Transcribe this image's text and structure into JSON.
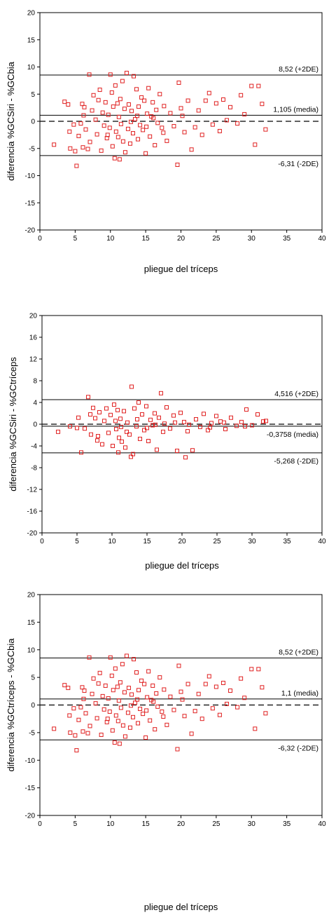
{
  "chart_data": [
    {
      "type": "scatter",
      "xlabel": "pliegue del tríceps",
      "ylabel": "diferencia %GCSiri - %GCbia",
      "xlim": [
        0,
        40
      ],
      "ylim": [
        -20,
        20
      ],
      "xticks": [
        "0",
        "5",
        "10",
        "15",
        "20",
        "25",
        "30",
        "35",
        "40"
      ],
      "yticks": [
        "20",
        "15",
        "10",
        "5",
        "0",
        "-5",
        "-10",
        "-15",
        "-20"
      ],
      "ytick_values": [
        20,
        15,
        10,
        5,
        0,
        -5,
        -10,
        -15,
        -20
      ],
      "lines": [
        {
          "y": 8.52,
          "style": "solid",
          "label": "8,52 (+2DE)",
          "label_pos": "above"
        },
        {
          "y": 1.105,
          "style": "solid",
          "label": "1,105 (media)",
          "label_pos": "above"
        },
        {
          "y": 0,
          "style": "dashed",
          "label": "",
          "label_pos": "none"
        },
        {
          "y": -6.31,
          "style": "solid",
          "label": "-6,31 (-2DE)",
          "label_pos": "below"
        }
      ],
      "points": [
        [
          2,
          -4.3
        ],
        [
          3.5,
          3.6
        ],
        [
          4,
          3.1
        ],
        [
          4.2,
          -1.9
        ],
        [
          4.8,
          -0.6
        ],
        [
          5,
          -5.5
        ],
        [
          5.2,
          -8.2
        ],
        [
          5.5,
          -2.7
        ],
        [
          5.8,
          -0.4
        ],
        [
          6,
          3.2
        ],
        [
          6.1,
          -4.8
        ],
        [
          6.3,
          2.6
        ],
        [
          6.5,
          -1.5
        ],
        [
          6.8,
          -5.1
        ],
        [
          7,
          8.6
        ],
        [
          7.1,
          -3.8
        ],
        [
          7.4,
          2.0
        ],
        [
          7.6,
          4.8
        ],
        [
          7.9,
          0.3
        ],
        [
          8.1,
          -2.4
        ],
        [
          8.3,
          3.9
        ],
        [
          8.5,
          5.8
        ],
        [
          8.7,
          -5.4
        ],
        [
          8.9,
          1.6
        ],
        [
          9.1,
          -0.8
        ],
        [
          9.3,
          3.5
        ],
        [
          9.5,
          -3.1
        ],
        [
          9.7,
          1.2
        ],
        [
          9.9,
          -1.2
        ],
        [
          10.0,
          8.6
        ],
        [
          10.2,
          5.3
        ],
        [
          10.3,
          -4.6
        ],
        [
          10.4,
          2.7
        ],
        [
          10.6,
          -6.8
        ],
        [
          10.7,
          6.6
        ],
        [
          10.8,
          -1.9
        ],
        [
          11,
          3.3
        ],
        [
          11.1,
          -2.9
        ],
        [
          11.2,
          0.8
        ],
        [
          11.4,
          4.1
        ],
        [
          11.5,
          -0.5
        ],
        [
          11.7,
          7.4
        ],
        [
          11.8,
          -3.7
        ],
        [
          12,
          2.3
        ],
        [
          12.1,
          -5.7
        ],
        [
          12.3,
          8.9
        ],
        [
          12.5,
          -1.4
        ],
        [
          12.6,
          3.1
        ],
        [
          12.8,
          -4.1
        ],
        [
          13,
          1.9
        ],
        [
          13.2,
          -2.2
        ],
        [
          13.3,
          8.3
        ],
        [
          13.5,
          0.4
        ],
        [
          13.7,
          5.9
        ],
        [
          13.9,
          -3.3
        ],
        [
          14,
          2.7
        ],
        [
          14.2,
          -0.7
        ],
        [
          14.4,
          4.4
        ],
        [
          14.6,
          -1.6
        ],
        [
          14.8,
          3.8
        ],
        [
          15,
          -5.9
        ],
        [
          15.2,
          1.4
        ],
        [
          15.4,
          6.1
        ],
        [
          15.6,
          -2.8
        ],
        [
          15.8,
          0.9
        ],
        [
          16,
          3.5
        ],
        [
          16.3,
          -4.4
        ],
        [
          16.5,
          2.1
        ],
        [
          16.7,
          -0.3
        ],
        [
          17,
          5.0
        ],
        [
          17.3,
          -1.2
        ],
        [
          17.6,
          2.8
        ],
        [
          18,
          -3.6
        ],
        [
          18.5,
          1.5
        ],
        [
          19,
          -0.9
        ],
        [
          19.5,
          -8.0
        ],
        [
          19.7,
          7.1
        ],
        [
          20,
          2.4
        ],
        [
          20.5,
          -2.0
        ],
        [
          21,
          3.8
        ],
        [
          21.5,
          -5.2
        ],
        [
          22,
          -1.1
        ],
        [
          22.5,
          2.0
        ],
        [
          23,
          -2.5
        ],
        [
          24,
          5.2
        ],
        [
          24.5,
          -0.6
        ],
        [
          25,
          3.3
        ],
        [
          25.5,
          -1.8
        ],
        [
          26,
          4.0
        ],
        [
          27,
          2.6
        ],
        [
          28,
          -0.4
        ],
        [
          28.5,
          4.8
        ],
        [
          29,
          1.3
        ],
        [
          30,
          6.5
        ],
        [
          30.5,
          -4.3
        ],
        [
          31,
          6.5
        ],
        [
          31.5,
          3.2
        ],
        [
          32,
          -1.5
        ],
        [
          4.3,
          -5.0
        ],
        [
          6.2,
          1.1
        ],
        [
          9.6,
          -2.5
        ],
        [
          11.3,
          -7.0
        ],
        [
          12.9,
          -0.1
        ],
        [
          13.8,
          1.0
        ],
        [
          15.1,
          -1.0
        ],
        [
          16.1,
          0.6
        ],
        [
          17.5,
          -2.1
        ],
        [
          20.2,
          1.0
        ],
        [
          23.5,
          3.8
        ],
        [
          26.5,
          0.2
        ]
      ]
    },
    {
      "type": "scatter",
      "xlabel": "pliegue del tríceps",
      "ylabel": "diferencia %GCSiri - %GCtríceps",
      "xlim": [
        0,
        40
      ],
      "ylim": [
        -20,
        20
      ],
      "xticks": [
        "0",
        "5",
        "10",
        "15",
        "20",
        "25",
        "30",
        "35",
        "40"
      ],
      "yticks": [
        "20",
        "16",
        "12",
        "8",
        "4",
        "0",
        "-4",
        "-8",
        "-12",
        "-16",
        "-20"
      ],
      "ytick_values": [
        20,
        16,
        12,
        8,
        4,
        0,
        -4,
        -8,
        -12,
        -16,
        -20
      ],
      "lines": [
        {
          "y": 4.516,
          "style": "solid",
          "label": "4,516 (+2DE)",
          "label_pos": "above"
        },
        {
          "y": 0,
          "style": "dashed",
          "label": "",
          "label_pos": "none"
        },
        {
          "y": -0.3758,
          "style": "solid",
          "label": "-0,3758 (media)",
          "label_pos": "below"
        },
        {
          "y": -5.268,
          "style": "solid",
          "label": "-5,268 (-2DE)",
          "label_pos": "below"
        }
      ],
      "points": [
        [
          2.3,
          -1.4
        ],
        [
          4,
          -0.4
        ],
        [
          5.2,
          1.2
        ],
        [
          5.6,
          -5.2
        ],
        [
          6.1,
          -0.8
        ],
        [
          6.6,
          5.0
        ],
        [
          7,
          -1.9
        ],
        [
          7.3,
          3.0
        ],
        [
          7.6,
          1.1
        ],
        [
          7.9,
          -3.0
        ],
        [
          8.2,
          2.2
        ],
        [
          8.6,
          -3.7
        ],
        [
          8.9,
          0.6
        ],
        [
          9.2,
          2.9
        ],
        [
          9.5,
          -1.6
        ],
        [
          9.8,
          1.7
        ],
        [
          10.1,
          -4.0
        ],
        [
          10.3,
          3.6
        ],
        [
          10.6,
          -0.9
        ],
        [
          10.8,
          2.6
        ],
        [
          11,
          -2.5
        ],
        [
          11.2,
          1.0
        ],
        [
          11.4,
          -3.2
        ],
        [
          11.7,
          2.4
        ],
        [
          11.9,
          -4.3
        ],
        [
          12.2,
          0.3
        ],
        [
          12.5,
          -1.9
        ],
        [
          12.8,
          6.9
        ],
        [
          13.0,
          -5.5
        ],
        [
          13.2,
          2.9
        ],
        [
          13.5,
          -0.4
        ],
        [
          13.8,
          4.0
        ],
        [
          14.0,
          -2.7
        ],
        [
          14.3,
          1.8
        ],
        [
          14.6,
          -1.1
        ],
        [
          14.9,
          3.3
        ],
        [
          15.2,
          -3.1
        ],
        [
          15.5,
          0.8
        ],
        [
          15.8,
          -0.2
        ],
        [
          16.1,
          2.0
        ],
        [
          16.4,
          -4.7
        ],
        [
          16.7,
          1.2
        ],
        [
          17.0,
          5.7
        ],
        [
          17.3,
          -1.4
        ],
        [
          17.8,
          3.1
        ],
        [
          18.3,
          -0.8
        ],
        [
          18.8,
          1.6
        ],
        [
          19.3,
          -4.9
        ],
        [
          19.8,
          2.1
        ],
        [
          20.3,
          0.4
        ],
        [
          20.8,
          -1.3
        ],
        [
          21.5,
          -4.8
        ],
        [
          22,
          0.9
        ],
        [
          22.6,
          -0.5
        ],
        [
          23.1,
          1.9
        ],
        [
          23.7,
          -1.1
        ],
        [
          24.2,
          0.2
        ],
        [
          24.9,
          1.5
        ],
        [
          25.5,
          0.5
        ],
        [
          26.2,
          -0.9
        ],
        [
          27,
          1.2
        ],
        [
          27.8,
          -0.3
        ],
        [
          28.5,
          0.4
        ],
        [
          29.2,
          2.7
        ],
        [
          30,
          -0.2
        ],
        [
          30.8,
          1.8
        ],
        [
          31.6,
          0.5
        ],
        [
          32.0,
          0.6
        ],
        [
          5.0,
          -0.7
        ],
        [
          6.9,
          1.8
        ],
        [
          8.0,
          -2.2
        ],
        [
          10.5,
          0.6
        ],
        [
          11.3,
          -0.5
        ],
        [
          12.1,
          -1.4
        ],
        [
          13.6,
          0.9
        ],
        [
          15.0,
          -0.7
        ],
        [
          16.2,
          -0.1
        ],
        [
          17.5,
          0.1
        ],
        [
          19.0,
          0.3
        ],
        [
          21.0,
          -0.1
        ],
        [
          24.0,
          -0.6
        ],
        [
          26.0,
          0.3
        ],
        [
          29.0,
          -0.4
        ],
        [
          12.7,
          -6.0
        ],
        [
          20.5,
          -6.1
        ],
        [
          10.9,
          -5.2
        ]
      ]
    },
    {
      "type": "scatter",
      "xlabel": "pliegue del tríceps",
      "ylabel": "diferencia %GCtríceps - %GCbia",
      "xlim": [
        0,
        40
      ],
      "ylim": [
        -20,
        20
      ],
      "xticks": [
        "0",
        "5",
        "10",
        "15",
        "20",
        "25",
        "30",
        "35",
        "40"
      ],
      "yticks": [
        "20",
        "15",
        "10",
        "5",
        "0",
        "-5",
        "-10",
        "-15",
        "-20"
      ],
      "ytick_values": [
        20,
        15,
        10,
        5,
        0,
        -5,
        -10,
        -15,
        -20
      ],
      "lines": [
        {
          "y": 8.52,
          "style": "solid",
          "label": "8,52 (+2DE)",
          "label_pos": "above"
        },
        {
          "y": 1.1,
          "style": "solid",
          "label": "1,1 (media)",
          "label_pos": "above"
        },
        {
          "y": 0,
          "style": "dashed",
          "label": "",
          "label_pos": "none"
        },
        {
          "y": -6.32,
          "style": "solid",
          "label": "-6,32 (-2DE)",
          "label_pos": "below"
        }
      ],
      "points": [
        [
          2,
          -4.3
        ],
        [
          3.5,
          3.6
        ],
        [
          4,
          3.1
        ],
        [
          4.2,
          -1.9
        ],
        [
          4.8,
          -0.6
        ],
        [
          5,
          -5.5
        ],
        [
          5.2,
          -8.2
        ],
        [
          5.5,
          -2.7
        ],
        [
          5.8,
          -0.4
        ],
        [
          6,
          3.2
        ],
        [
          6.1,
          -4.8
        ],
        [
          6.3,
          2.6
        ],
        [
          6.5,
          -1.5
        ],
        [
          6.8,
          -5.1
        ],
        [
          7,
          8.6
        ],
        [
          7.1,
          -3.8
        ],
        [
          7.4,
          2.0
        ],
        [
          7.6,
          4.8
        ],
        [
          7.9,
          0.3
        ],
        [
          8.1,
          -2.4
        ],
        [
          8.3,
          3.9
        ],
        [
          8.5,
          5.8
        ],
        [
          8.7,
          -5.4
        ],
        [
          8.9,
          1.6
        ],
        [
          9.1,
          -0.8
        ],
        [
          9.3,
          3.5
        ],
        [
          9.5,
          -3.1
        ],
        [
          9.7,
          1.2
        ],
        [
          9.9,
          -1.2
        ],
        [
          10.0,
          8.6
        ],
        [
          10.2,
          5.3
        ],
        [
          10.3,
          -4.6
        ],
        [
          10.4,
          2.7
        ],
        [
          10.6,
          -6.8
        ],
        [
          10.7,
          6.6
        ],
        [
          10.8,
          -1.9
        ],
        [
          11,
          3.3
        ],
        [
          11.1,
          -2.9
        ],
        [
          11.2,
          0.8
        ],
        [
          11.4,
          4.1
        ],
        [
          11.5,
          -0.5
        ],
        [
          11.7,
          7.4
        ],
        [
          11.8,
          -3.7
        ],
        [
          12,
          2.3
        ],
        [
          12.1,
          -5.7
        ],
        [
          12.3,
          8.9
        ],
        [
          12.5,
          -1.4
        ],
        [
          12.6,
          3.1
        ],
        [
          12.8,
          -4.1
        ],
        [
          13,
          1.9
        ],
        [
          13.2,
          -2.2
        ],
        [
          13.3,
          8.3
        ],
        [
          13.5,
          0.4
        ],
        [
          13.7,
          5.9
        ],
        [
          13.9,
          -3.3
        ],
        [
          14,
          2.7
        ],
        [
          14.2,
          -0.7
        ],
        [
          14.4,
          4.4
        ],
        [
          14.6,
          -1.6
        ],
        [
          14.8,
          3.8
        ],
        [
          15,
          -5.9
        ],
        [
          15.2,
          1.4
        ],
        [
          15.4,
          6.1
        ],
        [
          15.6,
          -2.8
        ],
        [
          15.8,
          0.9
        ],
        [
          16,
          3.5
        ],
        [
          16.3,
          -4.4
        ],
        [
          16.5,
          2.1
        ],
        [
          16.7,
          -0.3
        ],
        [
          17,
          5.0
        ],
        [
          17.3,
          -1.2
        ],
        [
          17.6,
          2.8
        ],
        [
          18,
          -3.6
        ],
        [
          18.5,
          1.5
        ],
        [
          19,
          -0.9
        ],
        [
          19.5,
          -8.0
        ],
        [
          19.7,
          7.1
        ],
        [
          20,
          2.4
        ],
        [
          20.5,
          -2.0
        ],
        [
          21,
          3.8
        ],
        [
          21.5,
          -5.2
        ],
        [
          22,
          -1.1
        ],
        [
          22.5,
          2.0
        ],
        [
          23,
          -2.5
        ],
        [
          24,
          5.2
        ],
        [
          24.5,
          -0.6
        ],
        [
          25,
          3.3
        ],
        [
          25.5,
          -1.8
        ],
        [
          26,
          4.0
        ],
        [
          27,
          2.6
        ],
        [
          28,
          -0.4
        ],
        [
          28.5,
          4.8
        ],
        [
          29,
          1.3
        ],
        [
          30,
          6.5
        ],
        [
          30.5,
          -4.3
        ],
        [
          31,
          6.5
        ],
        [
          31.5,
          3.2
        ],
        [
          32,
          -1.5
        ],
        [
          4.3,
          -5.0
        ],
        [
          6.2,
          1.1
        ],
        [
          9.6,
          -2.5
        ],
        [
          11.3,
          -7.0
        ],
        [
          12.9,
          -0.1
        ],
        [
          13.8,
          1.0
        ],
        [
          15.1,
          -1.0
        ],
        [
          16.1,
          0.6
        ],
        [
          17.5,
          -2.1
        ],
        [
          20.2,
          1.0
        ],
        [
          23.5,
          3.8
        ],
        [
          26.5,
          0.2
        ]
      ]
    }
  ]
}
